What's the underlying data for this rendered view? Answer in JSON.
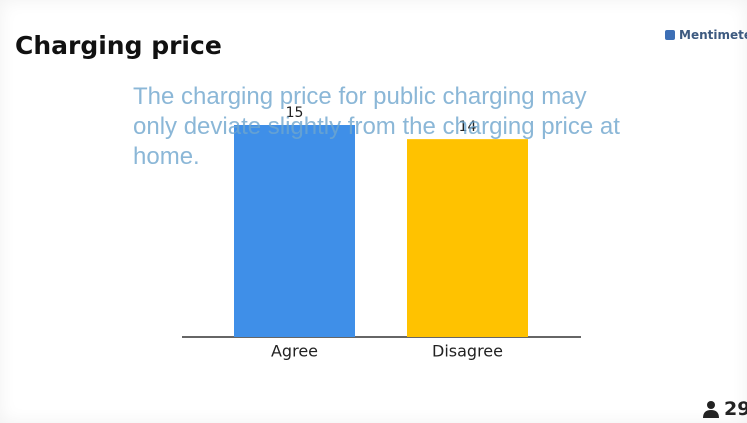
{
  "brand": "Mentimeter",
  "participants": 29,
  "chart_data": {
    "type": "bar",
    "title": "Charging price",
    "subtitle": "The charging price for public charging may only deviate slightly from the charging price at home.",
    "categories": [
      "Agree",
      "Disagree"
    ],
    "values": [
      15,
      14
    ],
    "colors": [
      "#3f8fe8",
      "#ffc200"
    ],
    "ylim": [
      0,
      15
    ]
  }
}
